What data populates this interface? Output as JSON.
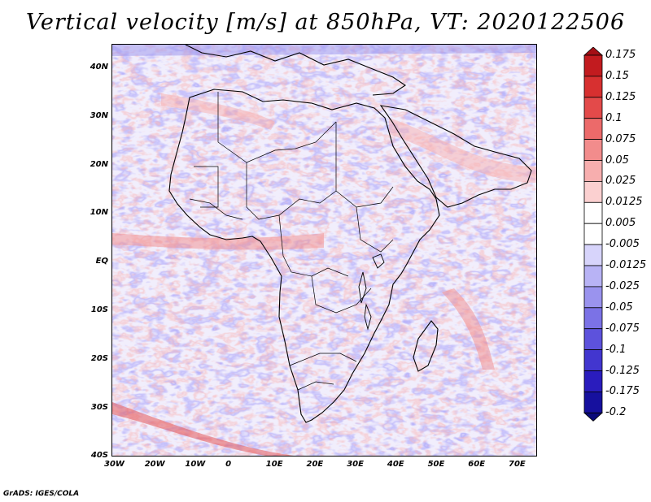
{
  "title": "Vertical velocity [m/s] at 850hPa, VT: 2020122506",
  "footer": "GrADS: IGES/COLA",
  "map": {
    "variable": "Vertical velocity",
    "units": "m/s",
    "level": "850hPa",
    "valid_time": "2020122506",
    "extent": {
      "lon_min": -30,
      "lon_max": 75,
      "lat_min": -40,
      "lat_max": 45
    },
    "lon_ticks": [
      "30W",
      "20W",
      "10W",
      "0",
      "10E",
      "20E",
      "30E",
      "40E",
      "50E",
      "60E",
      "70E"
    ],
    "lat_ticks": [
      "40N",
      "30N",
      "20N",
      "10N",
      "EQ",
      "10S",
      "20S",
      "30S",
      "40S"
    ]
  },
  "colorbar": {
    "levels": [
      "0.175",
      "0.15",
      "0.125",
      "0.1",
      "0.075",
      "0.05",
      "0.025",
      "0.0125",
      "0.005",
      "-0.005",
      "-0.0125",
      "-0.025",
      "-0.05",
      "-0.075",
      "-0.1",
      "-0.125",
      "-0.175",
      "-0.2"
    ],
    "colors": [
      "#a50f15",
      "#c21b1f",
      "#d73030",
      "#e34a4a",
      "#ec6a6a",
      "#f28c8c",
      "#f7aeae",
      "#fbd0d0",
      "#ffffff",
      "#ffffff",
      "#d7d4fb",
      "#b8b3f5",
      "#9a93ee",
      "#7b72e6",
      "#5d52dc",
      "#4236cf",
      "#2a1cbd",
      "#16109e",
      "#0a0a7a"
    ]
  }
}
